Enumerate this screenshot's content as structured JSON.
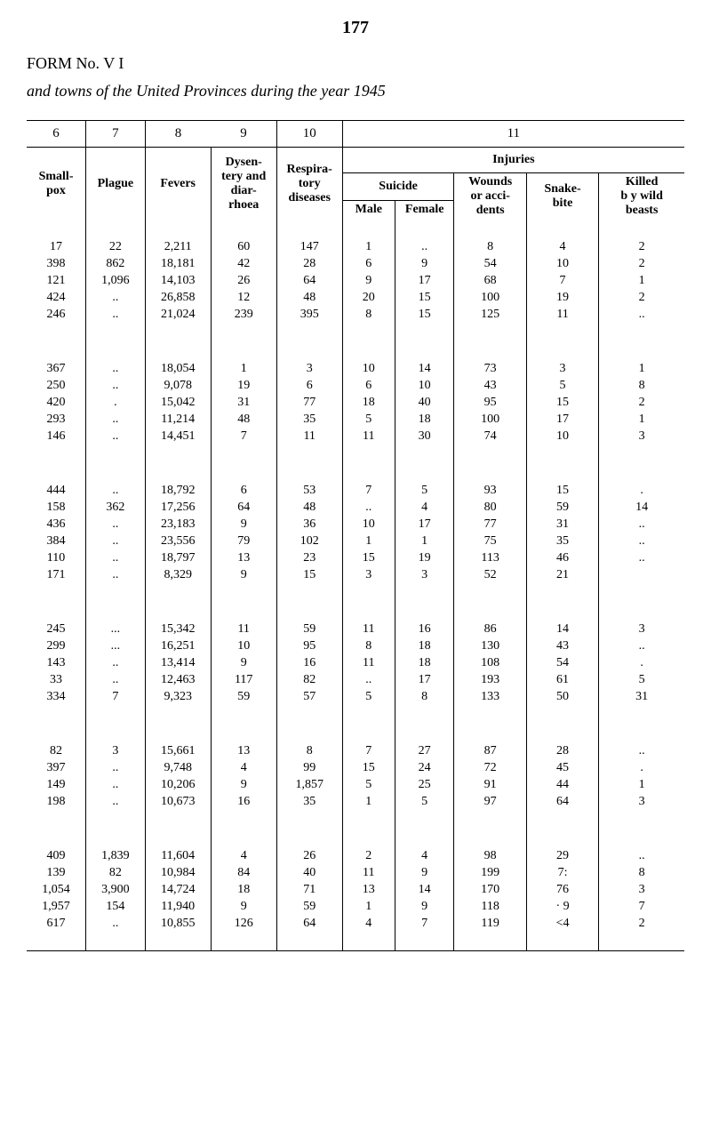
{
  "page_number": "177",
  "form_title": "FORM No. V I",
  "subtitle": "and towns of the United Provinces during the year 1945",
  "col_numbers": [
    "6",
    "7",
    "8",
    "9",
    "10",
    "11"
  ],
  "injuries_label": "Injuries",
  "headers": {
    "smallpox": "Small-pox",
    "plague": "Plague",
    "fevers": "Fevers",
    "dysentery": "Dysen-\ntery and\ndiar-\nrhoea",
    "respiratory": "Respira-\ntory\ndiseases",
    "suicide": "Suicide",
    "male": "Male",
    "female": "Female",
    "wounds": "Wounds\nor acci-\ndents",
    "snake": "Snake-\nbite",
    "killed": "Killed\nb y wild\nbeasts"
  },
  "groups": [
    [
      [
        "17",
        "22",
        "2,211",
        "60",
        "147",
        "1",
        "..",
        "8",
        "4",
        "2"
      ],
      [
        "398",
        "862",
        "18,181",
        "42",
        "28",
        "6",
        "9",
        "54",
        "10",
        "2"
      ],
      [
        "121",
        "1,096",
        "14,103",
        "26",
        "64",
        "9",
        "17",
        "68",
        "7",
        "1"
      ],
      [
        "424",
        "..",
        "26,858",
        "12",
        "48",
        "20",
        "15",
        "100",
        "19",
        "2"
      ],
      [
        "246",
        "..",
        "21,024",
        "239",
        "395",
        "8",
        "15",
        "125",
        "11",
        ".."
      ]
    ],
    [
      [
        "367",
        "..",
        "18,054",
        "1",
        "3",
        "10",
        "14",
        "73",
        "3",
        "1"
      ],
      [
        "250",
        "..",
        "9,078",
        "19",
        "6",
        "6",
        "10",
        "43",
        "5",
        "8"
      ],
      [
        "420",
        ".",
        "15,042",
        "31",
        "77",
        "18",
        "40",
        "95",
        "15",
        "2"
      ],
      [
        "293",
        "..",
        "11,214",
        "48",
        "35",
        "5",
        "18",
        "100",
        "17",
        "1"
      ],
      [
        "146",
        "..",
        "14,451",
        "7",
        "11",
        "11",
        "30",
        "74",
        "10",
        "3"
      ]
    ],
    [
      [
        "444",
        "..",
        "18,792",
        "6",
        "53",
        "7",
        "5",
        "93",
        "15",
        "."
      ],
      [
        "158",
        "362",
        "17,256",
        "64",
        "48",
        "..",
        "4",
        "80",
        "59",
        "14"
      ],
      [
        "436",
        "..",
        "23,183",
        "9",
        "36",
        "10",
        "17",
        "77",
        "31",
        ".."
      ],
      [
        "384",
        "..",
        "23,556",
        "79",
        "102",
        "1",
        "1",
        "75",
        "35",
        ".."
      ],
      [
        "110",
        "..",
        "18,797",
        "13",
        "23",
        "15",
        "19",
        "113",
        "46",
        ".."
      ],
      [
        "171",
        "..",
        "8,329",
        "9",
        "15",
        "3",
        "3",
        "52",
        "21",
        ""
      ]
    ],
    [
      [
        "245",
        "...",
        "15,342",
        "11",
        "59",
        "11",
        "16",
        "86",
        "14",
        "3"
      ],
      [
        "299",
        "...",
        "16,251",
        "10",
        "95",
        "8",
        "18",
        "130",
        "43",
        ".."
      ],
      [
        "143",
        "..",
        "13,414",
        "9",
        "16",
        "11",
        "18",
        "108",
        "54",
        "."
      ],
      [
        "33",
        "..",
        "12,463",
        "117",
        "82",
        "..",
        "17",
        "193",
        "61",
        "5"
      ],
      [
        "334",
        "7",
        "9,323",
        "59",
        "57",
        "5",
        "8",
        "133",
        "50",
        "31"
      ]
    ],
    [
      [
        "82",
        "3",
        "15,661",
        "13",
        "8",
        "7",
        "27",
        "87",
        "28",
        ".."
      ],
      [
        "397",
        "..",
        "9,748",
        "4",
        "99",
        "15",
        "24",
        "72",
        "45",
        "."
      ],
      [
        "149",
        "..",
        "10,206",
        "9",
        "1,857",
        "5",
        "25",
        "91",
        "44",
        "1"
      ],
      [
        "198",
        "..",
        "10,673",
        "16",
        "35",
        "1",
        "5",
        "97",
        "64",
        "3"
      ]
    ],
    [
      [
        "409",
        "1,839",
        "11,604",
        "4",
        "26",
        "2",
        "4",
        "98",
        "29",
        ".."
      ],
      [
        "139",
        "82",
        "10,984",
        "84",
        "40",
        "11",
        "9",
        "199",
        "7:",
        "8"
      ],
      [
        "1,054",
        "3,900",
        "14,724",
        "18",
        "71",
        "13",
        "14",
        "170",
        "76",
        "3"
      ],
      [
        "1,957",
        "154",
        "11,940",
        "9",
        "59",
        "1",
        "9",
        "118",
        "· 9",
        "7"
      ],
      [
        "617",
        "..",
        "10,855",
        "126",
        "64",
        "4",
        "7",
        "119",
        "<4",
        "2"
      ]
    ]
  ]
}
